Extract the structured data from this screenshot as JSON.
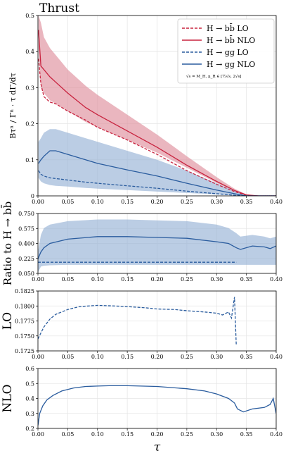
{
  "colors": {
    "bb": "#c8233f",
    "bb_band": "#de8f9c",
    "gg": "#2a5c9e",
    "gg_band": "#97b2d6",
    "grid": "#e6e6e6"
  },
  "chart_data": [
    {
      "type": "line",
      "panel": "main",
      "title": "Thrust",
      "xlabel": "",
      "ylabel": "Bτⁿ / Γⁿ · τ dΓ/dτ",
      "xlim": [
        0,
        0.4
      ],
      "ylim": [
        0,
        0.5
      ],
      "xticks": [
        "0.00",
        "0.05",
        "0.10",
        "0.15",
        "0.20",
        "0.25",
        "0.30",
        "0.35",
        "0.40"
      ],
      "yticks": [
        "0",
        "0.1",
        "0.2",
        "0.3",
        "0.4",
        "0.5"
      ],
      "grid": true,
      "legend_position": "top-right",
      "legend_note": "√s = M_H, μ_R ∈ [½√s, 2√s]",
      "x": [
        0.001,
        0.005,
        0.01,
        0.02,
        0.03,
        0.05,
        0.08,
        0.1,
        0.15,
        0.2,
        0.25,
        0.3,
        0.33,
        0.35,
        0.37,
        0.4
      ],
      "series": [
        {
          "name": "H → bb̄ LO",
          "style": "dashed",
          "color_key": "bb",
          "values": [
            0.38,
            0.31,
            0.275,
            0.26,
            0.255,
            0.235,
            0.21,
            0.19,
            0.155,
            0.115,
            0.07,
            0.032,
            0.012,
            0.002,
            0.0,
            0.0
          ]
        },
        {
          "name": "H → bb̄ NLO",
          "style": "solid",
          "color_key": "bb",
          "values": [
            0.46,
            0.36,
            0.35,
            0.33,
            0.315,
            0.285,
            0.245,
            0.225,
            0.18,
            0.135,
            0.085,
            0.04,
            0.015,
            0.003,
            0.0,
            0.0
          ],
          "band_low": [
            0.4,
            0.3,
            0.285,
            0.265,
            0.255,
            0.235,
            0.205,
            0.19,
            0.155,
            0.12,
            0.078,
            0.036,
            0.013,
            0.002,
            0.0,
            0.0
          ],
          "band_high": [
            0.5,
            0.48,
            0.44,
            0.41,
            0.39,
            0.35,
            0.305,
            0.28,
            0.225,
            0.17,
            0.11,
            0.052,
            0.02,
            0.004,
            0.0,
            0.0
          ]
        },
        {
          "name": "H → gg LO",
          "style": "dashed",
          "color_key": "gg",
          "values": [
            0.07,
            0.06,
            0.055,
            0.05,
            0.048,
            0.044,
            0.038,
            0.035,
            0.028,
            0.021,
            0.013,
            0.006,
            0.002,
            0.0,
            0.0,
            0.0
          ]
        },
        {
          "name": "H → gg NLO",
          "style": "solid",
          "color_key": "gg",
          "values": [
            0.09,
            0.1,
            0.11,
            0.125,
            0.125,
            0.115,
            0.1,
            0.09,
            0.072,
            0.055,
            0.035,
            0.016,
            0.006,
            0.0,
            0.0,
            0.0
          ],
          "band_low": [
            0.05,
            0.04,
            0.035,
            0.03,
            0.028,
            0.026,
            0.022,
            0.02,
            0.016,
            0.012,
            0.008,
            0.004,
            0.001,
            0.0,
            0.0,
            0.0
          ],
          "band_high": [
            0.15,
            0.16,
            0.175,
            0.185,
            0.185,
            0.175,
            0.16,
            0.15,
            0.125,
            0.1,
            0.07,
            0.035,
            0.014,
            0.002,
            0.0,
            0.0
          ]
        }
      ]
    },
    {
      "type": "line",
      "panel": "ratio",
      "ylabel": "Ratio to H → bb̄",
      "xlim": [
        0,
        0.4
      ],
      "ylim": [
        0.05,
        0.75
      ],
      "xticks": [
        "0.00",
        "0.05",
        "0.10",
        "0.15",
        "0.20",
        "0.25",
        "0.30",
        "0.35",
        "0.40"
      ],
      "yticks": [
        "0.050",
        "0.225",
        "0.400",
        "0.575",
        "0.750"
      ],
      "grid": true,
      "x": [
        0.0,
        0.005,
        0.01,
        0.02,
        0.05,
        0.1,
        0.15,
        0.2,
        0.25,
        0.3,
        0.32,
        0.333,
        0.34,
        0.36,
        0.38,
        0.39,
        0.4
      ],
      "series": [
        {
          "name": "H → gg LO",
          "style": "dashed",
          "color_key": "gg",
          "values": [
            0.18,
            0.18,
            0.18,
            0.18,
            0.18,
            0.18,
            0.18,
            0.18,
            0.18,
            0.18,
            0.18,
            0.18,
            null,
            null,
            null,
            null,
            null
          ]
        },
        {
          "name": "H → gg NLO",
          "style": "solid",
          "color_key": "gg",
          "values": [
            0.22,
            0.3,
            0.35,
            0.4,
            0.45,
            0.48,
            0.48,
            0.47,
            0.46,
            0.42,
            0.4,
            0.35,
            0.33,
            0.37,
            0.36,
            0.34,
            0.37
          ],
          "band_low": [
            0.06,
            0.13,
            0.14,
            0.145,
            0.15,
            0.15,
            0.15,
            0.15,
            0.15,
            0.15,
            0.15,
            0.15,
            0.15,
            0.15,
            0.15,
            0.15,
            0.15
          ],
          "band_high": [
            0.3,
            0.5,
            0.58,
            0.62,
            0.66,
            0.68,
            0.68,
            0.67,
            0.66,
            0.62,
            0.58,
            0.52,
            0.48,
            0.5,
            0.48,
            0.46,
            0.48
          ]
        }
      ]
    },
    {
      "type": "line",
      "panel": "lo",
      "ylabel": "LO",
      "xlim": [
        0,
        0.4
      ],
      "ylim": [
        0.1725,
        0.1825
      ],
      "xticks": [
        "0.00",
        "0.05",
        "0.10",
        "0.15",
        "0.20",
        "0.25",
        "0.30",
        "0.35",
        "0.40"
      ],
      "yticks": [
        "0.1725",
        "0.1750",
        "0.1775",
        "0.1800",
        "0.1825"
      ],
      "grid": true,
      "x": [
        0.0,
        0.005,
        0.01,
        0.02,
        0.03,
        0.05,
        0.07,
        0.1,
        0.13,
        0.15,
        0.18,
        0.2,
        0.23,
        0.25,
        0.28,
        0.3,
        0.31,
        0.32,
        0.325,
        0.33,
        0.333
      ],
      "series": [
        {
          "name": "LO",
          "style": "dashed",
          "color_key": "gg",
          "values": [
            0.1745,
            0.1755,
            0.1765,
            0.1778,
            0.1786,
            0.1794,
            0.1799,
            0.1801,
            0.18,
            0.1799,
            0.1797,
            0.1795,
            0.1794,
            0.1792,
            0.179,
            0.1788,
            0.1785,
            0.179,
            0.178,
            0.1815,
            0.1735
          ]
        }
      ]
    },
    {
      "type": "line",
      "panel": "nlo",
      "ylabel": "NLO",
      "xlabel": "τ",
      "xlim": [
        0,
        0.4
      ],
      "ylim": [
        0.2,
        0.6
      ],
      "xticks": [
        "0.00",
        "0.05",
        "0.10",
        "0.15",
        "0.20",
        "0.25",
        "0.30",
        "0.35",
        "0.40"
      ],
      "yticks": [
        "0.2",
        "0.3",
        "0.4",
        "0.5",
        "0.6"
      ],
      "grid": true,
      "x": [
        0.0,
        0.003,
        0.008,
        0.015,
        0.025,
        0.04,
        0.06,
        0.08,
        0.1,
        0.12,
        0.15,
        0.2,
        0.25,
        0.28,
        0.3,
        0.32,
        0.33,
        0.335,
        0.345,
        0.36,
        0.38,
        0.39,
        0.395,
        0.4
      ],
      "series": [
        {
          "name": "NLO",
          "style": "solid",
          "color_key": "gg",
          "values": [
            0.22,
            0.3,
            0.35,
            0.39,
            0.42,
            0.45,
            0.47,
            0.48,
            0.483,
            0.485,
            0.485,
            0.48,
            0.465,
            0.45,
            0.43,
            0.4,
            0.37,
            0.33,
            0.31,
            0.33,
            0.34,
            0.36,
            0.4,
            0.3
          ]
        }
      ]
    }
  ]
}
